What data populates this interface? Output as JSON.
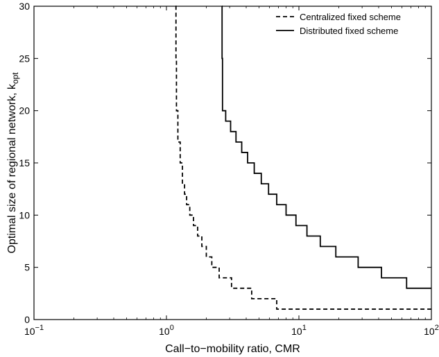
{
  "chart_data": {
    "type": "line",
    "xscale": "log",
    "xlim": [
      0.1,
      100
    ],
    "ylim": [
      0,
      30
    ],
    "xticks": [
      0.1,
      1,
      10,
      100
    ],
    "xtick_base": "10",
    "xtick_exponents": [
      "−1",
      "0",
      "1",
      "2"
    ],
    "yticks": [
      0,
      5,
      10,
      15,
      20,
      25,
      30
    ],
    "xlabel": "Call−to−mobility ratio, CMR",
    "ylabel_main": "Optimal size of regional network, k",
    "ylabel_sub": "opt",
    "grid": false,
    "legend_position": "top-right",
    "series": [
      {
        "name": "Centralized fixed scheme",
        "line_style": "dashed",
        "color": "#000000",
        "points": [
          [
            1.17,
            30
          ],
          [
            1.18,
            25
          ],
          [
            1.19,
            20
          ],
          [
            1.22,
            17
          ],
          [
            1.27,
            15
          ],
          [
            1.32,
            13
          ],
          [
            1.37,
            12
          ],
          [
            1.42,
            11
          ],
          [
            1.5,
            10
          ],
          [
            1.6,
            9
          ],
          [
            1.72,
            8
          ],
          [
            1.85,
            7
          ],
          [
            2.0,
            6
          ],
          [
            2.2,
            5
          ],
          [
            2.5,
            4
          ],
          [
            3.1,
            3
          ],
          [
            4.4,
            2
          ],
          [
            6.8,
            1
          ],
          [
            100,
            1
          ]
        ]
      },
      {
        "name": "Distributed fixed scheme",
        "line_style": "solid",
        "color": "#000000",
        "points": [
          [
            2.62,
            30
          ],
          [
            2.63,
            25
          ],
          [
            2.65,
            20
          ],
          [
            2.8,
            19
          ],
          [
            3.05,
            18
          ],
          [
            3.35,
            17
          ],
          [
            3.7,
            16
          ],
          [
            4.1,
            15
          ],
          [
            4.6,
            14
          ],
          [
            5.2,
            13
          ],
          [
            5.9,
            12
          ],
          [
            6.8,
            11
          ],
          [
            8.0,
            10
          ],
          [
            9.5,
            9
          ],
          [
            11.5,
            8
          ],
          [
            14.5,
            7
          ],
          [
            19.0,
            6
          ],
          [
            28.0,
            5
          ],
          [
            42.0,
            4
          ],
          [
            65.0,
            3
          ],
          [
            100,
            3
          ]
        ]
      }
    ]
  }
}
